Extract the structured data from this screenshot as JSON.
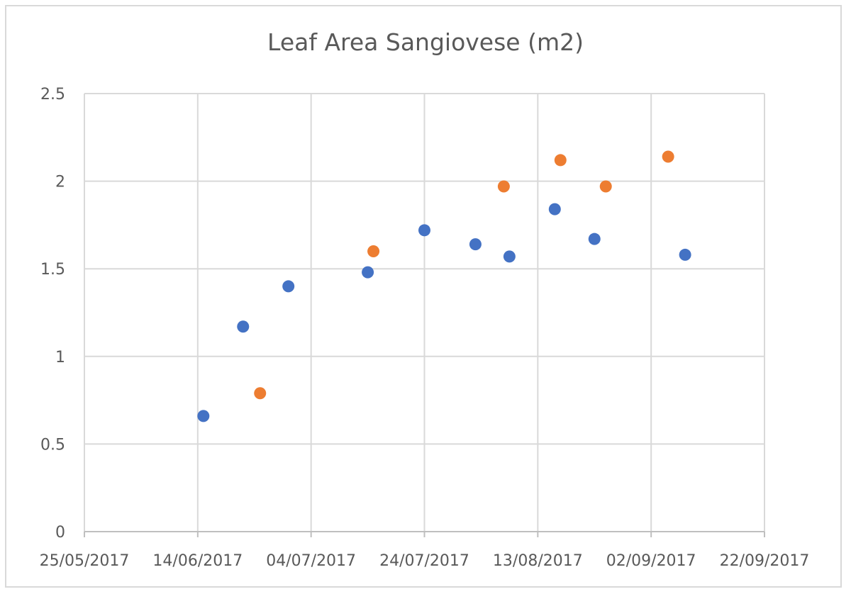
{
  "chart_data": {
    "type": "scatter",
    "title": "Leaf Area Sangiovese (m2)",
    "xlabel": "",
    "ylabel": "",
    "x_axis_type": "date",
    "xlim": [
      "25/05/2017",
      "22/09/2017"
    ],
    "ylim": [
      0,
      2.5
    ],
    "x_tick_labels": [
      "25/05/2017",
      "14/06/2017",
      "04/07/2017",
      "24/07/2017",
      "13/08/2017",
      "02/09/2017",
      "22/09/2017"
    ],
    "y_tick_labels": [
      "0",
      "0.5",
      "1",
      "1.5",
      "2",
      "2.5"
    ],
    "grid": true,
    "legend": "none",
    "series": [
      {
        "color": "#4472c4",
        "points": [
          {
            "x": "15/06/2017",
            "y": 0.66
          },
          {
            "x": "22/06/2017",
            "y": 1.17
          },
          {
            "x": "30/06/2017",
            "y": 1.4
          },
          {
            "x": "14/07/2017",
            "y": 1.48
          },
          {
            "x": "24/07/2017",
            "y": 1.72
          },
          {
            "x": "02/08/2017",
            "y": 1.64
          },
          {
            "x": "08/08/2017",
            "y": 1.57
          },
          {
            "x": "16/08/2017",
            "y": 1.84
          },
          {
            "x": "23/08/2017",
            "y": 1.67
          },
          {
            "x": "08/09/2017",
            "y": 1.58
          }
        ]
      },
      {
        "color": "#ed7d31",
        "points": [
          {
            "x": "25/06/2017",
            "y": 0.79
          },
          {
            "x": "15/07/2017",
            "y": 1.6
          },
          {
            "x": "07/08/2017",
            "y": 1.97
          },
          {
            "x": "17/08/2017",
            "y": 2.12
          },
          {
            "x": "25/08/2017",
            "y": 1.97
          },
          {
            "x": "05/09/2017",
            "y": 2.14
          }
        ]
      }
    ]
  }
}
